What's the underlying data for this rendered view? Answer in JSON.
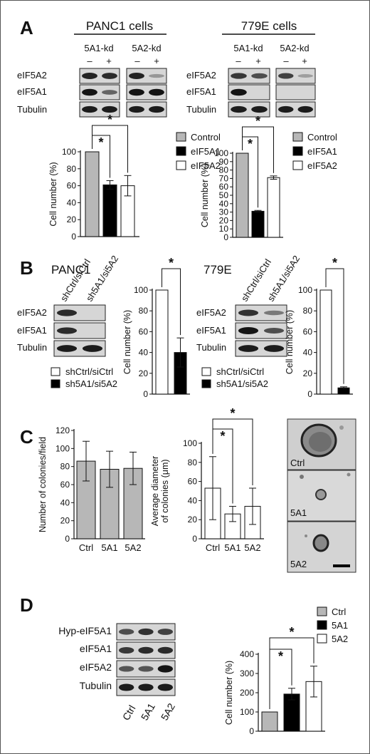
{
  "panels": [
    "A",
    "B",
    "C",
    "D"
  ],
  "colors": {
    "control": "#b7b7b7",
    "black": "#000000",
    "white": "#ffffff",
    "frame": "#555555"
  },
  "panelA": {
    "titles": [
      "PANC1 cells",
      "779E cells"
    ],
    "kd_labels": [
      "5A1-kd",
      "5A2-kd"
    ],
    "signs": [
      "–",
      "+"
    ],
    "blot_labels": [
      "eIF5A2",
      "eIF5A1",
      "Tubulin"
    ],
    "legend": [
      "Control",
      "eIF5A1",
      "eIF5A2"
    ],
    "star": "*"
  },
  "panelB": {
    "titles": [
      "PANC1",
      "779E"
    ],
    "lane_labels": [
      "shCtrl/siCtrl",
      "sh5A1/si5A2"
    ],
    "blot_labels": [
      "eIF5A2",
      "eIF5A1",
      "Tubulin"
    ],
    "legend": [
      "shCtrl/siCtrl",
      "sh5A1/si5A2"
    ],
    "star": "*"
  },
  "panelC": {
    "image_labels": [
      "Ctrl",
      "5A1",
      "5A2"
    ],
    "star": "*"
  },
  "panelD": {
    "blot_labels": [
      "Hyp-eIF5A1",
      "eIF5A1",
      "eIF5A2",
      "Tubulin"
    ],
    "lane_labels": [
      "Ctrl",
      "5A1",
      "5A2"
    ],
    "legend": [
      "Ctrl",
      "5A1",
      "5A2"
    ],
    "star": "*"
  },
  "chart_data": [
    {
      "id": "A-PANC1",
      "type": "bar",
      "categories": [
        "Control",
        "eIF5A1",
        "eIF5A2"
      ],
      "values": [
        100,
        61,
        60
      ],
      "errors": [
        0,
        5,
        12
      ],
      "colors": [
        "#b7b7b7",
        "#000000",
        "#ffffff"
      ],
      "ylabel": "Cell number (%)",
      "ylim": [
        0,
        100
      ],
      "yticks": [
        0,
        20,
        40,
        60,
        80,
        100
      ],
      "significance": [
        [
          0,
          1
        ],
        [
          0,
          2
        ]
      ]
    },
    {
      "id": "A-779E",
      "type": "bar",
      "categories": [
        "Control",
        "eIF5A1",
        "eIF5A2"
      ],
      "values": [
        100,
        31,
        71
      ],
      "errors": [
        0,
        1,
        2
      ],
      "colors": [
        "#b7b7b7",
        "#000000",
        "#ffffff"
      ],
      "ylabel": "Cell number (%)",
      "ylim": [
        0,
        100
      ],
      "yticks": [
        0,
        10,
        20,
        30,
        40,
        50,
        60,
        70,
        80,
        90,
        100
      ],
      "significance": [
        [
          0,
          1
        ],
        [
          0,
          2
        ]
      ]
    },
    {
      "id": "B-PANC1",
      "type": "bar",
      "categories": [
        "shCtrl/siCtrl",
        "sh5A1/si5A2"
      ],
      "values": [
        100,
        40
      ],
      "errors": [
        0,
        14
      ],
      "colors": [
        "#ffffff",
        "#000000"
      ],
      "ylabel": "Cell number (%)",
      "ylim": [
        0,
        100
      ],
      "yticks": [
        0,
        20,
        40,
        60,
        80,
        100
      ],
      "significance": [
        [
          0,
          1
        ]
      ]
    },
    {
      "id": "B-779E",
      "type": "bar",
      "categories": [
        "shCtrl/siCtrl",
        "sh5A1/si5A2"
      ],
      "values": [
        100,
        6
      ],
      "errors": [
        0,
        1
      ],
      "colors": [
        "#ffffff",
        "#000000"
      ],
      "ylabel": "Cell number (%)",
      "ylim": [
        0,
        100
      ],
      "yticks": [
        0,
        20,
        40,
        60,
        80,
        100
      ],
      "significance": [
        [
          0,
          1
        ]
      ]
    },
    {
      "id": "C-colonies",
      "type": "bar",
      "categories": [
        "Ctrl",
        "5A1",
        "5A2"
      ],
      "values": [
        86,
        77,
        78
      ],
      "errors": [
        22,
        20,
        18
      ],
      "colors": [
        "#b7b7b7",
        "#b7b7b7",
        "#b7b7b7"
      ],
      "ylabel": "Number of colonies/field",
      "ylim": [
        0,
        120
      ],
      "yticks": [
        0,
        20,
        40,
        60,
        80,
        100,
        120
      ],
      "significance": []
    },
    {
      "id": "C-diameter",
      "type": "bar",
      "categories": [
        "Ctrl",
        "5A1",
        "5A2"
      ],
      "values": [
        53,
        26,
        34
      ],
      "errors": [
        33,
        8,
        19
      ],
      "colors": [
        "#ffffff",
        "#ffffff",
        "#ffffff"
      ],
      "ylabel": "Average diameter of colonies (μm)",
      "ylim": [
        0,
        100
      ],
      "yticks": [
        0,
        20,
        40,
        60,
        80,
        100
      ],
      "significance": [
        [
          0,
          1
        ],
        [
          0,
          2
        ]
      ]
    },
    {
      "id": "D",
      "type": "bar",
      "categories": [
        "Ctrl",
        "5A1",
        "5A2"
      ],
      "values": [
        100,
        193,
        258
      ],
      "errors": [
        0,
        30,
        80
      ],
      "colors": [
        "#b7b7b7",
        "#000000",
        "#ffffff"
      ],
      "ylabel": "Cell number (%)",
      "ylim": [
        0,
        400
      ],
      "yticks": [
        0,
        100,
        200,
        300,
        400
      ],
      "significance": [
        [
          0,
          1
        ],
        [
          0,
          2
        ]
      ]
    }
  ]
}
